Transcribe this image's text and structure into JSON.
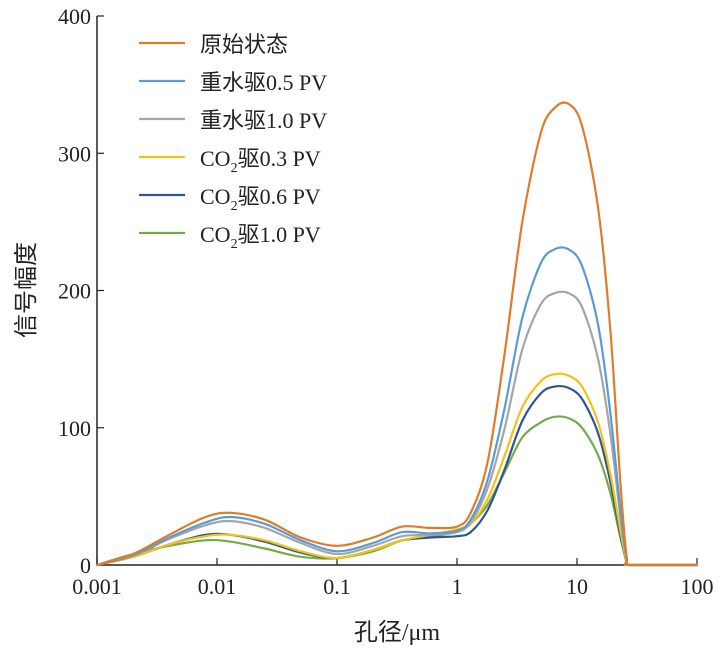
{
  "chart_data": {
    "type": "line",
    "title": "",
    "xlabel": "孔径/μm",
    "ylabel": "信号幅度",
    "x_scale": "log",
    "xlim": [
      0.001,
      100
    ],
    "ylim": [
      0,
      400
    ],
    "x_ticks": [
      "0.001",
      "0.01",
      "0.1",
      "1",
      "10",
      "100"
    ],
    "y_ticks": [
      "0",
      "100",
      "200",
      "300",
      "400"
    ],
    "grid": false,
    "legend_position": "top-left",
    "x": [
      0.001,
      0.002,
      0.004,
      0.008,
      0.013,
      0.025,
      0.05,
      0.1,
      0.2,
      0.35,
      0.6,
      1.0,
      1.3,
      1.8,
      2.5,
      3.5,
      5.0,
      6.5,
      8.5,
      11,
      15,
      19,
      23,
      26,
      28,
      100
    ],
    "series": [
      {
        "name": "原始状态",
        "color": "#E07B2A",
        "values": [
          0,
          8,
          22,
          35,
          38,
          33,
          20,
          14,
          20,
          28,
          27,
          28,
          38,
          75,
          155,
          250,
          315,
          333,
          336,
          320,
          260,
          170,
          60,
          5,
          0,
          0
        ]
      },
      {
        "name": "重水驱0.5 PV",
        "color": "#5B9BD5",
        "values": [
          0,
          7,
          20,
          31,
          35,
          30,
          18,
          10,
          16,
          24,
          23,
          25,
          33,
          62,
          115,
          180,
          220,
          230,
          230,
          218,
          175,
          110,
          40,
          4,
          0,
          0
        ]
      },
      {
        "name": "重水驱1.0 PV",
        "color": "#A5A5A5",
        "values": [
          0,
          7,
          19,
          29,
          32,
          27,
          16,
          8,
          14,
          21,
          22,
          24,
          31,
          56,
          100,
          157,
          190,
          198,
          198,
          188,
          150,
          95,
          35,
          3,
          0,
          0
        ]
      },
      {
        "name": "CO2驱0.3 PV",
        "color": "#F2C314",
        "values": [
          0,
          6,
          15,
          21,
          22,
          18,
          10,
          5,
          11,
          18,
          22,
          26,
          30,
          48,
          80,
          115,
          134,
          139,
          138,
          130,
          104,
          66,
          25,
          2,
          0,
          0
        ]
      },
      {
        "name": "CO2驱0.6 PV",
        "color": "#2F5597",
        "values": [
          0,
          6,
          15,
          22,
          22,
          17,
          9,
          5,
          11,
          18,
          20,
          21,
          24,
          40,
          70,
          105,
          125,
          130,
          129,
          121,
          96,
          60,
          22,
          2,
          0,
          0
        ]
      },
      {
        "name": "CO2驱1.0 PV",
        "color": "#70AD47",
        "values": [
          0,
          8,
          14,
          18,
          17,
          12,
          6,
          5,
          10,
          18,
          21,
          24,
          30,
          44,
          68,
          93,
          104,
          108,
          107,
          100,
          80,
          52,
          20,
          2,
          0,
          0
        ]
      }
    ]
  },
  "legend": {
    "labels": [
      {
        "main": "原始状态",
        "sub": "",
        "rest": ""
      },
      {
        "main": "重水驱0.5 PV",
        "sub": "",
        "rest": ""
      },
      {
        "main": "重水驱1.0 PV",
        "sub": "",
        "rest": ""
      },
      {
        "main": "CO",
        "sub": "2",
        "rest": "驱0.3 PV"
      },
      {
        "main": "CO",
        "sub": "2",
        "rest": "驱0.6 PV"
      },
      {
        "main": "CO",
        "sub": "2",
        "rest": "驱1.0 PV"
      }
    ]
  }
}
